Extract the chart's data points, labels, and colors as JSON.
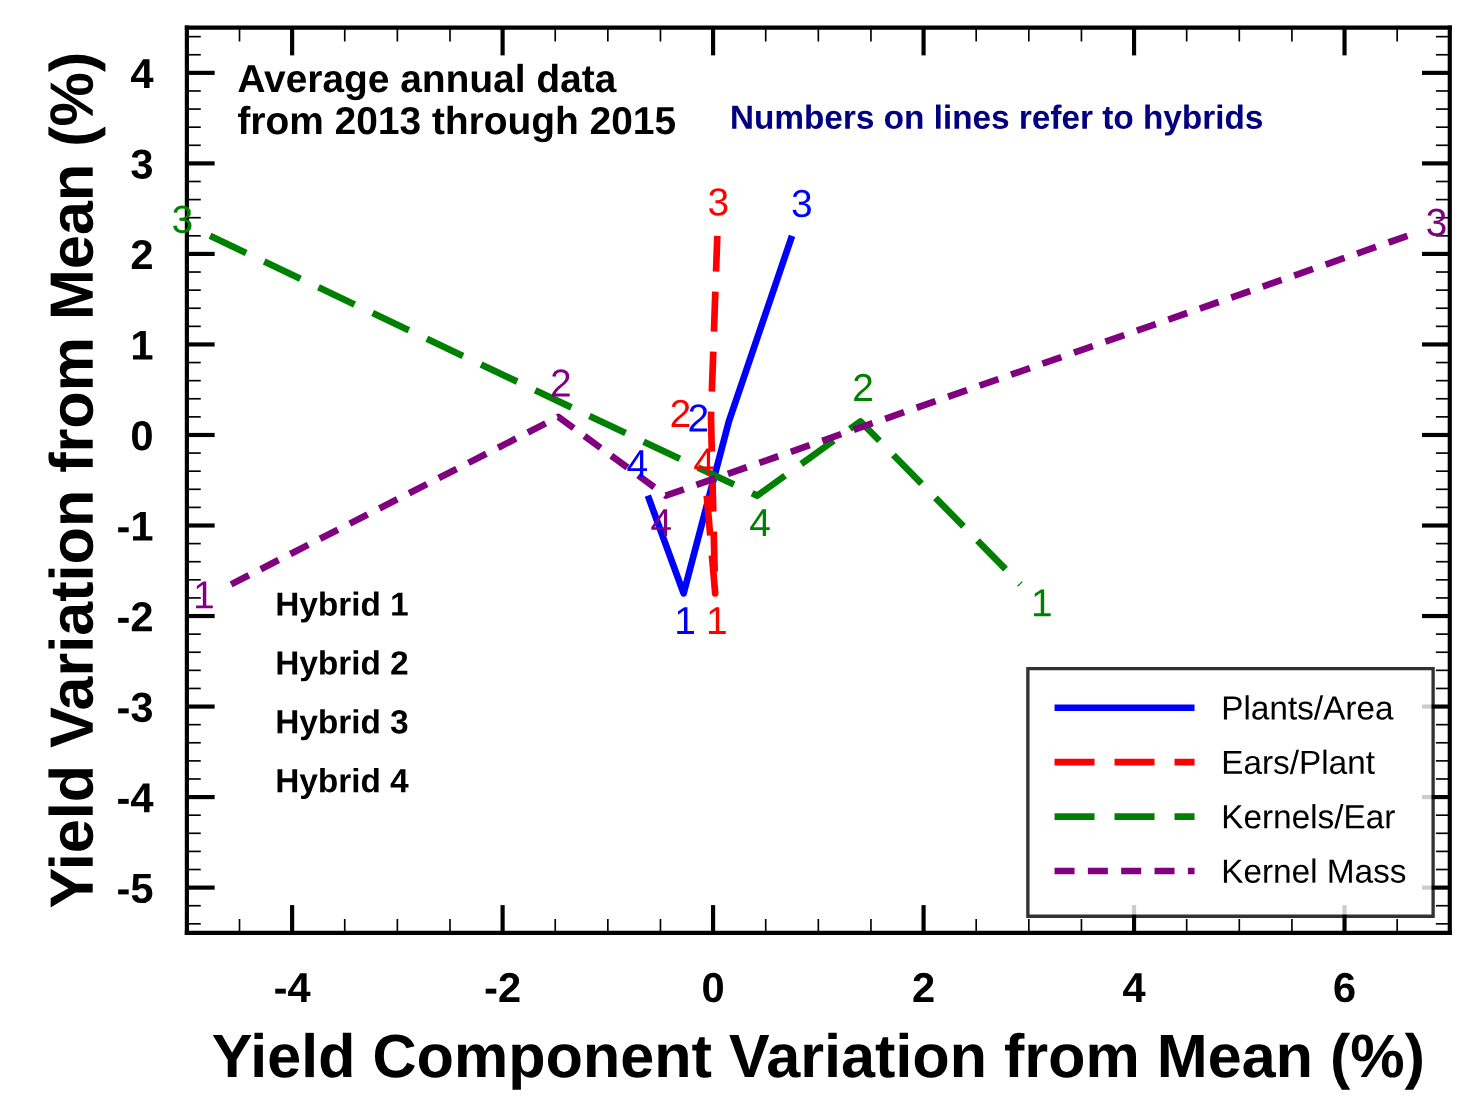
{
  "chart_data": {
    "type": "line",
    "xlabel": "Yield Component Variation from Mean (%)",
    "ylabel": "Yield Variation from Mean (%)",
    "xlim": [
      -5,
      7
    ],
    "xticks": [
      -4,
      -2,
      0,
      2,
      4,
      6
    ],
    "ylim": [
      -5.5,
      4.5
    ],
    "yticks": [
      -5,
      -4,
      -3,
      -2,
      -1,
      0,
      1,
      2,
      3,
      4
    ],
    "grid": false,
    "legend": "bottom right",
    "marker": "none",
    "series": [
      {
        "name": "Plants/Area",
        "color": "#0000ff",
        "line_style": "solid",
        "x": [
          -0.62,
          -0.28,
          0.15,
          0.75
        ],
        "values": [
          -0.67,
          -1.75,
          0.15,
          2.2
        ]
      },
      {
        "name": "Ears/Plant",
        "color": "#ff0000",
        "line_style": "dashed",
        "x": [
          -0.06,
          0.02,
          -0.02,
          0.04
        ],
        "values": [
          -0.67,
          -1.75,
          0.2,
          2.2
        ]
      },
      {
        "name": "Kernels/Ear",
        "color": "#008000",
        "line_style": "dashed",
        "x": [
          -4.78,
          0.42,
          1.4,
          2.92
        ],
        "values": [
          2.2,
          -0.67,
          0.15,
          -1.65
        ]
      },
      {
        "name": "Kernel Mass",
        "color": "#800080",
        "line_style": "dotted",
        "x": [
          -4.58,
          -1.47,
          -0.45,
          6.6
        ],
        "values": [
          -1.65,
          0.2,
          -0.67,
          2.2
        ]
      }
    ],
    "annotations": [
      "Average annual data\nfrom 2013 through 2015",
      "Numbers on lines refer to hybrids",
      "Hybrid 1",
      "Hybrid 2",
      "Hybrid 3",
      "Hybrid 4",
      {
        "text": "4",
        "x": -0.62,
        "y": -0.67
      },
      {
        "text": "1",
        "x": -0.28,
        "y": -1.75
      },
      {
        "text": "2",
        "x": 0.15,
        "y": 0.15
      },
      {
        "text": "3",
        "x": 0.75,
        "y": 2.2
      },
      {
        "text": "4",
        "x": -0.06,
        "y": -0.67
      },
      {
        "text": "1",
        "x": 0.02,
        "y": -1.75
      },
      {
        "text": "2",
        "x": -0.02,
        "y": 0.2
      },
      {
        "text": "3",
        "x": 0.04,
        "y": 2.2
      },
      {
        "text": "3",
        "x": -4.78,
        "y": 2.2
      },
      {
        "text": "4",
        "x": 0.42,
        "y": -0.67
      },
      {
        "text": "2",
        "x": 1.4,
        "y": 0.15
      },
      {
        "text": "1",
        "x": 2.92,
        "y": -1.65
      },
      {
        "text": "1",
        "x": -4.58,
        "y": -1.65
      },
      {
        "text": "2",
        "x": -1.47,
        "y": 0.2
      },
      {
        "text": "4",
        "x": -0.45,
        "y": -0.67
      },
      {
        "text": "3",
        "x": 6.6,
        "y": 2.2
      }
    ]
  }
}
